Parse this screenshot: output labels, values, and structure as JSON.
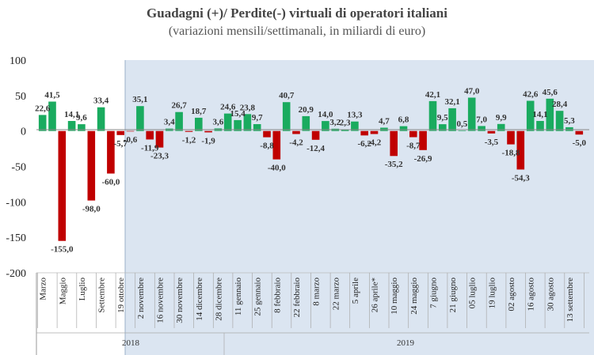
{
  "chart_data": {
    "type": "bar",
    "title": "Guadagni (+)/ Perdite(-) virtuali di operatori italiani",
    "subtitle": "(variazioni mensili/settimanali, in miliardi di euro)",
    "ylim": [
      -200,
      100
    ],
    "yticks": [
      "100",
      "50",
      "0",
      "-50",
      "-100",
      "-150",
      "-200"
    ],
    "ytick_values": [
      100,
      50,
      0,
      -50,
      -100,
      -150,
      -200
    ],
    "year_labels": [
      "2018",
      "2019"
    ],
    "colors": {
      "positive": "#1aab5f",
      "negative": "#c00000",
      "shade": "#dbe5f1",
      "divider": "#9bb0c8",
      "axis": "#888888"
    },
    "values": [
      22.6,
      41.5,
      -155.0,
      14.1,
      9.6,
      -98.0,
      33.4,
      -60.0,
      -5.7,
      -0.6,
      35.1,
      -11.9,
      -23.3,
      3.4,
      26.7,
      -1.2,
      18.7,
      -1.9,
      3.6,
      24.6,
      15.4,
      23.8,
      9.7,
      -8.8,
      -40.0,
      40.7,
      -4.2,
      20.9,
      -12.4,
      14.0,
      3.2,
      2.3,
      13.3,
      -6.2,
      -4.2,
      4.7,
      -35.2,
      6.8,
      -8.7,
      -26.9,
      42.1,
      9.5,
      32.1,
      0.5,
      47.0,
      7.0,
      -3.5,
      9.9,
      -18.8,
      -54.3,
      42.6,
      14.1,
      45.6,
      28.4,
      5.3,
      -5.0
    ],
    "data_labels": [
      "22,6",
      "41,5",
      "-155,0",
      "14,1",
      "9,6",
      "-98,0",
      "33,4",
      "-60,0",
      "-5,7",
      "-0,6",
      "35,1",
      "-11,9",
      "-23,3",
      "3,4",
      "26,7",
      "-1,2",
      "18,7",
      "-1,9",
      "3,6",
      "24,6",
      "15,4",
      "23,8",
      "9,7",
      "-8,8",
      "-40,0",
      "40,7",
      "-4,2",
      "20,9",
      "-12,4",
      "14,0",
      "3,2",
      "2,3",
      "13,3",
      "-6,2",
      "-4,2",
      "4,7",
      "-35,2",
      "6,8",
      "-8,7",
      "-26,9",
      "42,1",
      "9,5",
      "32,1",
      "0,5",
      "47,0",
      "7,0",
      "-3,5",
      "9,9",
      "-18,8",
      "-54,3",
      "42,6",
      "14,1",
      "45,6",
      "28,4",
      "5,3",
      "-5,0"
    ],
    "categories": [
      "Marzo",
      "",
      "Maggio",
      "",
      "Luglio",
      "",
      "Settembre",
      "",
      "19 ottobre",
      "",
      "2 novembre",
      "",
      "16 novembre",
      "",
      "30 novembre",
      "",
      "14 dicembre",
      "",
      "28 dicembre",
      "",
      "11 gennaio",
      "",
      "25 gennaio",
      "",
      "8 febbraio",
      "",
      "22 febbraio",
      "",
      "8 marzo",
      "",
      "22 marzo",
      "",
      "5 aprile",
      "",
      "26 aprile*",
      "",
      "10 maggio",
      "",
      "24 maggio",
      "",
      "7 giugno",
      "",
      "21 giugno",
      "",
      "05 luglio",
      "",
      "19 luglio",
      "",
      "02 agosto",
      "",
      "16 agosto",
      "",
      "30 agosto",
      "",
      "13 settembre",
      ""
    ]
  }
}
